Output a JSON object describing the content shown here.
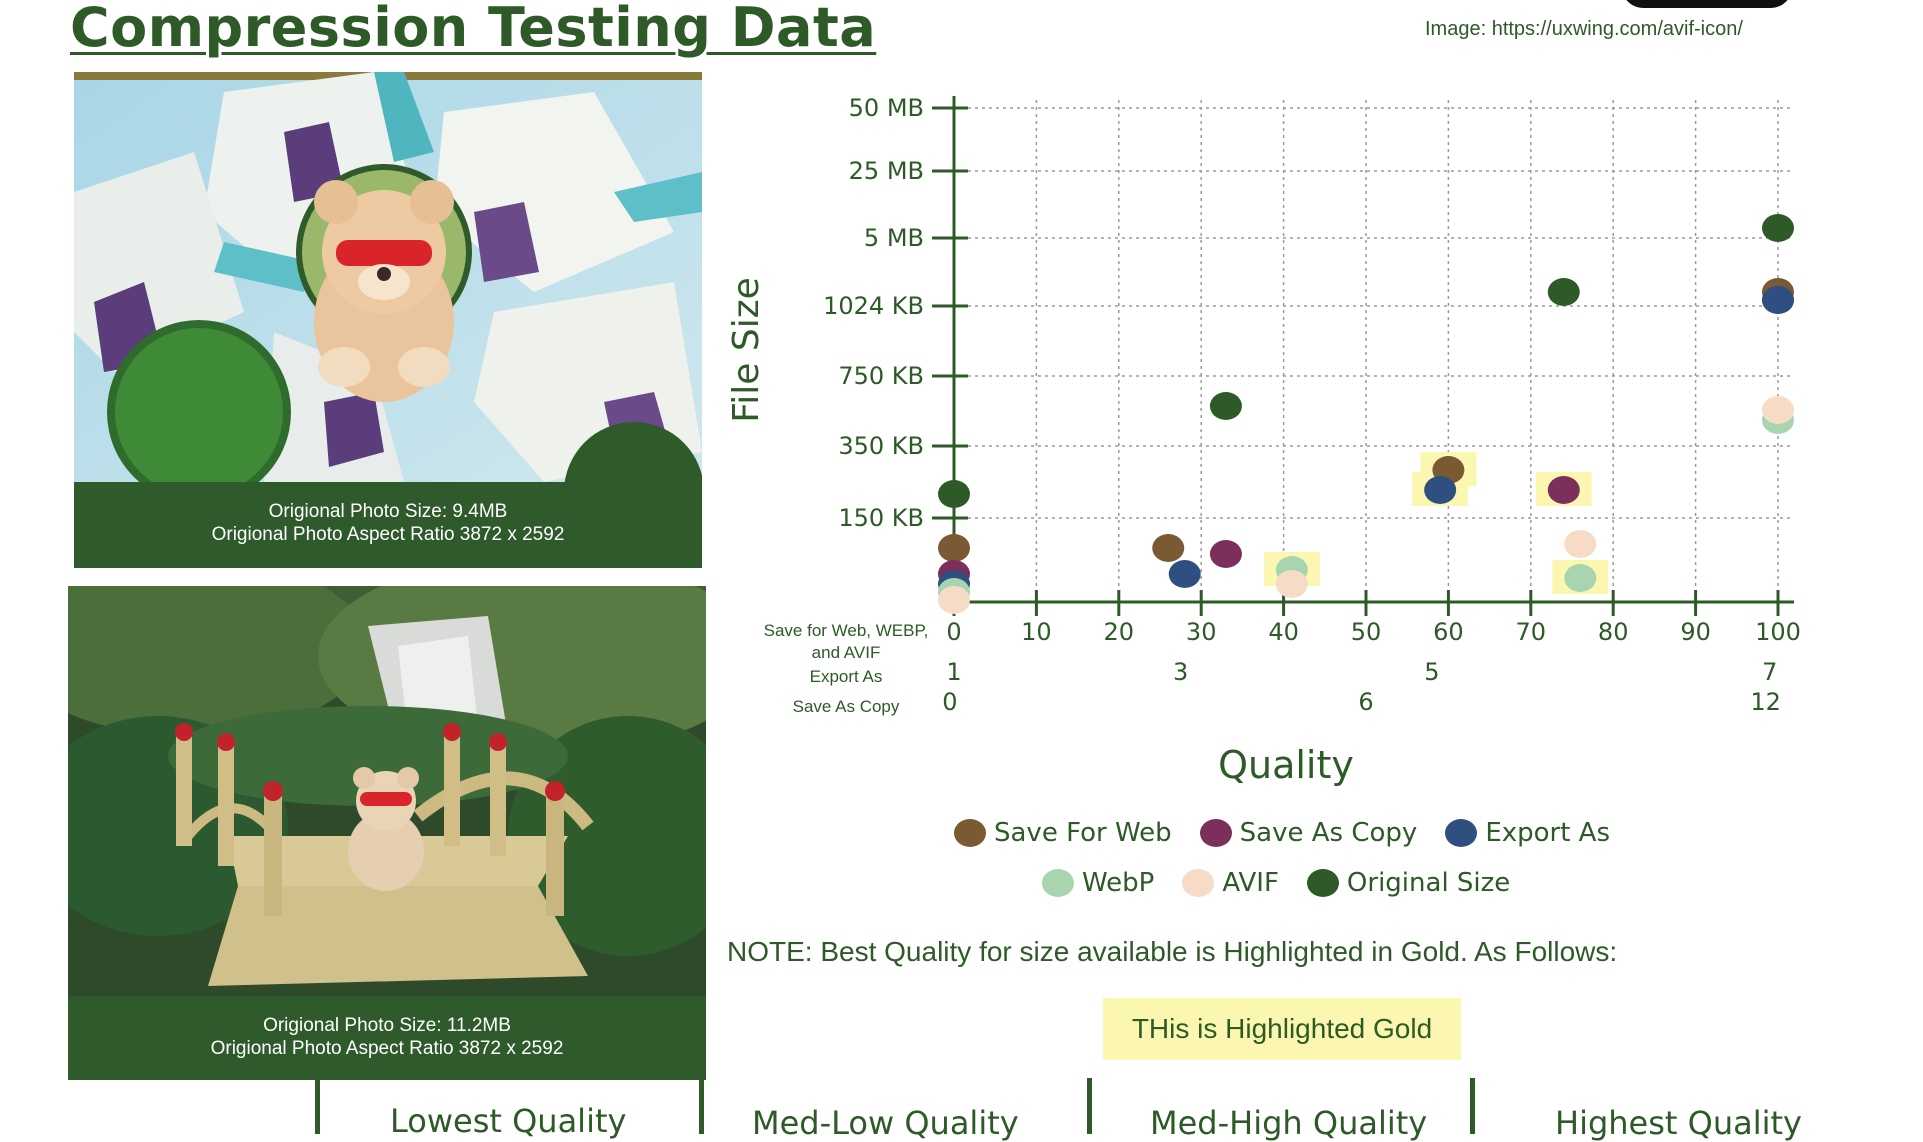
{
  "page": {
    "title": "Compression Testing Data",
    "image_credit": "Image: https://uxwing.com/avif-icon/"
  },
  "photos": [
    {
      "caption_line1": "Origional Photo Size: 9.4MB",
      "caption_line2": "Origional Photo Aspect Ratio 3872 x 2592"
    },
    {
      "caption_line1": "Origional Photo Size: 11.2MB",
      "caption_line2": "Origional Photo Aspect Ratio 3872 x 2592"
    }
  ],
  "chart_data": {
    "type": "scatter",
    "ylabel": "File Size",
    "xlabel": "Quality",
    "y_ticks": [
      "150 KB",
      "350 KB",
      "750 KB",
      "1024 KB",
      "5 MB",
      "25 MB",
      "50 MB"
    ],
    "x_scales": [
      {
        "label": "Save for Web, WEBP,",
        "label2": "and AVIF",
        "ticks": [
          "0",
          "10",
          "20",
          "30",
          "40",
          "50",
          "60",
          "70",
          "80",
          "90",
          "100"
        ],
        "values": [
          0,
          10,
          20,
          30,
          40,
          50,
          60,
          70,
          80,
          90,
          100
        ]
      },
      {
        "label": "Export As",
        "ticks": [
          "1",
          "3",
          "5",
          "7"
        ],
        "values": [
          1,
          3,
          5,
          7
        ]
      },
      {
        "label": "Save As Copy",
        "ticks": [
          "0",
          "6",
          "12"
        ],
        "values": [
          0,
          6,
          12
        ]
      }
    ],
    "series": [
      {
        "name": "Save For Web",
        "color": "#7a5a32",
        "points": [
          [
            0,
            "<150 KB"
          ],
          [
            26,
            "~100 KB"
          ],
          [
            60,
            "~330 KB"
          ],
          [
            100,
            "~1.2 MB"
          ]
        ]
      },
      {
        "name": "Save As Copy",
        "color": "#7d2f5c",
        "points": [
          [
            0,
            "~40 KB"
          ],
          [
            33,
            "~70 KB"
          ],
          [
            74,
            "~270 KB"
          ],
          [
            100,
            "~1.1 MB"
          ]
        ]
      },
      {
        "name": "Export As",
        "color": "#2f4f80",
        "points": [
          [
            0,
            "~20 KB"
          ],
          [
            28,
            "~40 KB"
          ],
          [
            59,
            "~280 KB"
          ],
          [
            100,
            "~1.1 MB"
          ]
        ]
      },
      {
        "name": "WebP",
        "color": "#a8d5b0",
        "points": [
          [
            0,
            "~10 KB"
          ],
          [
            41,
            "~30 KB"
          ],
          [
            76,
            "~35 KB"
          ],
          [
            100,
            "~500 KB"
          ]
        ]
      },
      {
        "name": "AVIF",
        "color": "#f6dcc6",
        "points": [
          [
            0,
            "~5 KB"
          ],
          [
            41,
            "~20 KB"
          ],
          [
            76,
            "~70 KB"
          ],
          [
            100,
            "~520 KB"
          ]
        ]
      },
      {
        "name": "Original Size",
        "color": "#2d5a27",
        "points": [
          [
            0,
            "~200 KB"
          ],
          [
            33,
            "~800 KB"
          ],
          [
            74,
            "~1.2 MB"
          ],
          [
            100,
            "~6 MB"
          ]
        ]
      }
    ],
    "highlighted_gold": [
      [
        "WebP",
        41
      ],
      [
        "Save For Web",
        60
      ],
      [
        "Export As",
        59
      ],
      [
        "Save As Copy",
        74
      ],
      [
        "WebP",
        76
      ]
    ],
    "highlight_color": "#fbf7b0",
    "grid": true
  },
  "note": {
    "text": "NOTE: Best Quality for size available is Highlighted in Gold. As Follows:",
    "gold_example": "THis is Highlighted Gold"
  },
  "quality_tabs": [
    "Lowest Quality",
    "Med-Low Quality",
    "Med-High Quality",
    "Highest Quality"
  ],
  "colors": {
    "primary_green": "#2d5a27",
    "gold_highlight": "#fbf7b0"
  }
}
